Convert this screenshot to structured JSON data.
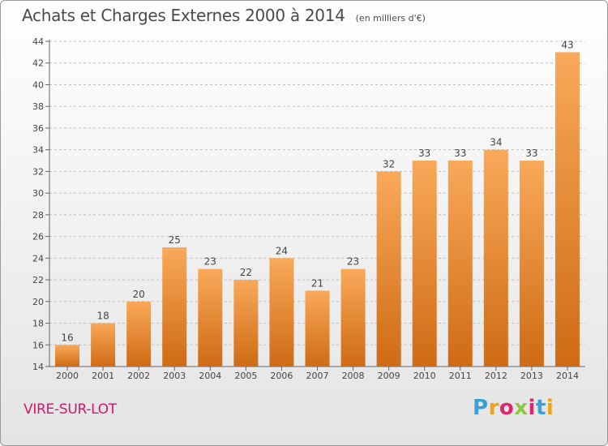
{
  "title": "Achats et Charges Externes 2000 à 2014",
  "subtitle": "(en milliers d'€)",
  "place": "VIRE-SUR-LOT",
  "logo": {
    "text": "Proxiti"
  },
  "colors": {
    "bar_light": "#f9a95a",
    "bar_dark": "#cf6b14",
    "axis": "#666666",
    "grid": "#bdbdbd",
    "title": "#4a4a4a",
    "place": "#d4176c"
  },
  "chart_data": {
    "type": "bar",
    "categories": [
      "2000",
      "2001",
      "2002",
      "2003",
      "2004",
      "2005",
      "2006",
      "2007",
      "2008",
      "2009",
      "2010",
      "2011",
      "2012",
      "2013",
      "2014"
    ],
    "values": [
      16,
      18,
      20,
      25,
      23,
      22,
      24,
      21,
      23,
      32,
      33,
      33,
      34,
      33,
      43
    ],
    "ylim": [
      14,
      44
    ],
    "yticks": [
      14,
      16,
      18,
      20,
      22,
      24,
      26,
      28,
      30,
      32,
      34,
      36,
      38,
      40,
      42,
      44
    ],
    "grid": true,
    "data_labels": true,
    "xlabel": "",
    "ylabel": ""
  }
}
